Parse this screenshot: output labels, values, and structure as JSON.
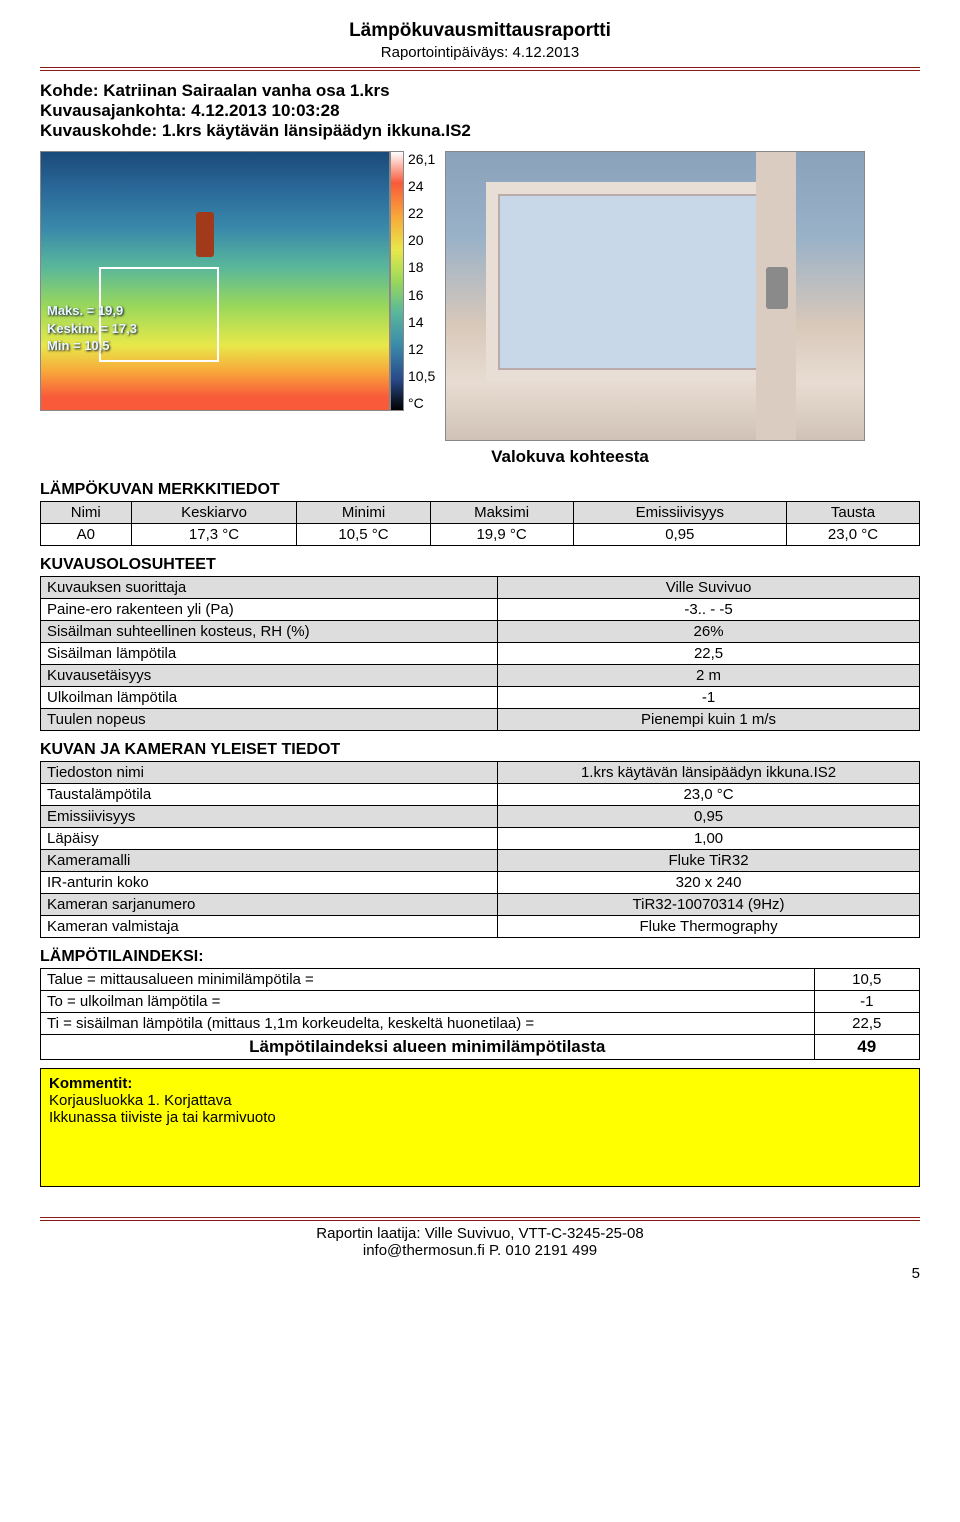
{
  "header": {
    "title": "Lämpökuvausmittausraportti",
    "subtitle": "Raportointipäiväys: 4.12.2013"
  },
  "target": {
    "kohde_label": "Kohde:",
    "kohde_value": "Katriinan Sairaalan vanha osa 1.krs",
    "ajankohta_label": "Kuvausajankohta:",
    "ajankohta_value": "4.12.2013 10:03:28",
    "kuvauskohde_label": "Kuvauskohde:",
    "kuvauskohde_value": "1.krs käytävän länsipäädyn ikkuna.IS2"
  },
  "thermal_overlay": {
    "maks": "Maks. = 19,9",
    "keskim": "Keskim. = 17,3",
    "min": "Min = 10,5"
  },
  "scale_ticks": [
    "26,1",
    "24",
    "22",
    "20",
    "18",
    "16",
    "14",
    "12",
    "10,5",
    "°C"
  ],
  "caption": "Valokuva kohteesta",
  "merkkitiedot": {
    "title": "LÄMPÖKUVAN MERKKITIEDOT",
    "headers": [
      "Nimi",
      "Keskiarvo",
      "Minimi",
      "Maksimi",
      "Emissiivisyys",
      "Tausta"
    ],
    "row": [
      "A0",
      "17,3 °C",
      "10,5 °C",
      "19,9 °C",
      "0,95",
      "23,0 °C"
    ],
    "header_bg": "#dddddd"
  },
  "olosuhteet": {
    "title": "KUVAUSOLOSUHTEET",
    "rows": [
      {
        "k": "Kuvauksen suorittaja",
        "v": "Ville Suvivuo",
        "grey": true
      },
      {
        "k": "Paine-ero rakenteen yli (Pa)",
        "v": "-3.. - -5",
        "grey": false
      },
      {
        "k": "Sisäilman suhteellinen kosteus, RH (%)",
        "v": "26%",
        "grey": true
      },
      {
        "k": "Sisäilman lämpötila",
        "v": "22,5",
        "grey": false
      },
      {
        "k": "Kuvausetäisyys",
        "v": "2 m",
        "grey": true
      },
      {
        "k": "Ulkoilman lämpötila",
        "v": "-1",
        "grey": false
      },
      {
        "k": "Tuulen nopeus",
        "v": "Pienempi kuin 1 m/s",
        "grey": true
      }
    ]
  },
  "kamera": {
    "title": "KUVAN JA KAMERAN YLEISET TIEDOT",
    "rows": [
      {
        "k": "Tiedoston nimi",
        "v": "1.krs käytävän länsipäädyn ikkuna.IS2",
        "grey": true
      },
      {
        "k": "Taustalämpötila",
        "v": "23,0 °C",
        "grey": false
      },
      {
        "k": "Emissiivisyys",
        "v": "0,95",
        "grey": true
      },
      {
        "k": "Läpäisy",
        "v": "1,00",
        "grey": false
      },
      {
        "k": "Kameramalli",
        "v": "Fluke TiR32",
        "grey": true
      },
      {
        "k": "IR-anturin koko",
        "v": "320 x 240",
        "grey": false
      },
      {
        "k": "Kameran sarjanumero",
        "v": "TiR32-10070314 (9Hz)",
        "grey": true
      },
      {
        "k": "Kameran valmistaja",
        "v": "Fluke Thermography",
        "grey": false
      }
    ]
  },
  "indeksi": {
    "title": "LÄMPÖTILAINDEKSI:",
    "rows": [
      {
        "k": "Talue = mittausalueen minimilämpötila =",
        "v": "10,5"
      },
      {
        "k": "To = ulkoilman lämpötila =",
        "v": "-1"
      },
      {
        "k": "Ti = sisäilman lämpötila (mittaus 1,1m korkeudelta, keskeltä huonetilaa) =",
        "v": "22,5"
      }
    ],
    "summary_k": "Lämpötilaindeksi alueen minimilämpötilasta",
    "summary_v": "49"
  },
  "kommentit": {
    "title": "Kommentit:",
    "line1": "Korjausluokka 1. Korjattava",
    "line2": "Ikkunassa tiiviste ja tai karmivuoto"
  },
  "footer": {
    "line1": "Raportin laatija: Ville Suvivuo, VTT-C-3245-25-08",
    "line2": "info@thermosun.fi  P. 010 2191 499",
    "page": "5"
  },
  "colors": {
    "rule": "#8a1a1a",
    "grey_row": "#dddddd",
    "yellow": "#ffff00"
  }
}
